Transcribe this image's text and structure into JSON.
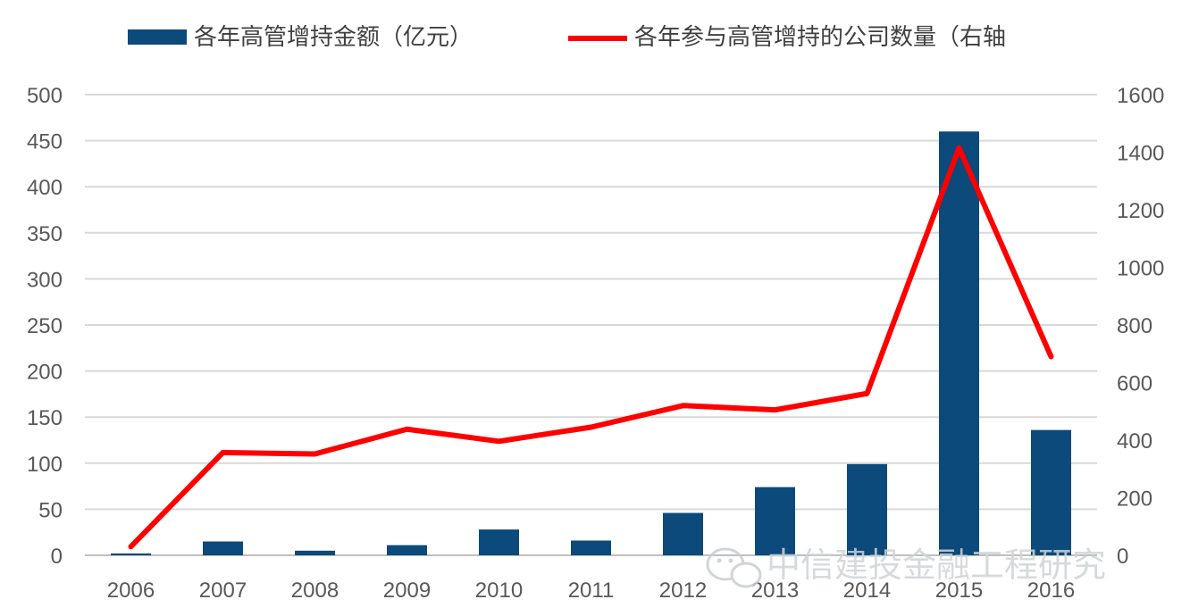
{
  "chart_data": {
    "type": "bar",
    "categories": [
      "2006",
      "2007",
      "2008",
      "2009",
      "2010",
      "2011",
      "2012",
      "2013",
      "2014",
      "2015",
      "2016"
    ],
    "series": [
      {
        "name": "各年高管增持金额（亿元）",
        "type": "bar",
        "axis": "left",
        "color": "#0b4a7a",
        "values": [
          2,
          15,
          5,
          11,
          28,
          16,
          46,
          74,
          99,
          460,
          136
        ]
      },
      {
        "name": "各年参与高管增持的公司数量（右轴",
        "type": "line",
        "axis": "right",
        "color": "#ff0000",
        "values": [
          30,
          357,
          352,
          438,
          396,
          445,
          520,
          505,
          562,
          1415,
          690
        ]
      }
    ],
    "y_left": {
      "min": 0,
      "max": 500,
      "step": 50,
      "ticks": [
        "0",
        "50",
        "100",
        "150",
        "200",
        "250",
        "300",
        "350",
        "400",
        "450",
        "500"
      ]
    },
    "y_right": {
      "min": 0,
      "max": 1600,
      "step": 200,
      "ticks": [
        "0",
        "200",
        "400",
        "600",
        "800",
        "1000",
        "1200",
        "1400",
        "1600"
      ]
    },
    "grid": true,
    "legend_position": "top"
  },
  "watermark": {
    "text": "中信建投金融工程研究",
    "icon": "wechat-icon"
  }
}
